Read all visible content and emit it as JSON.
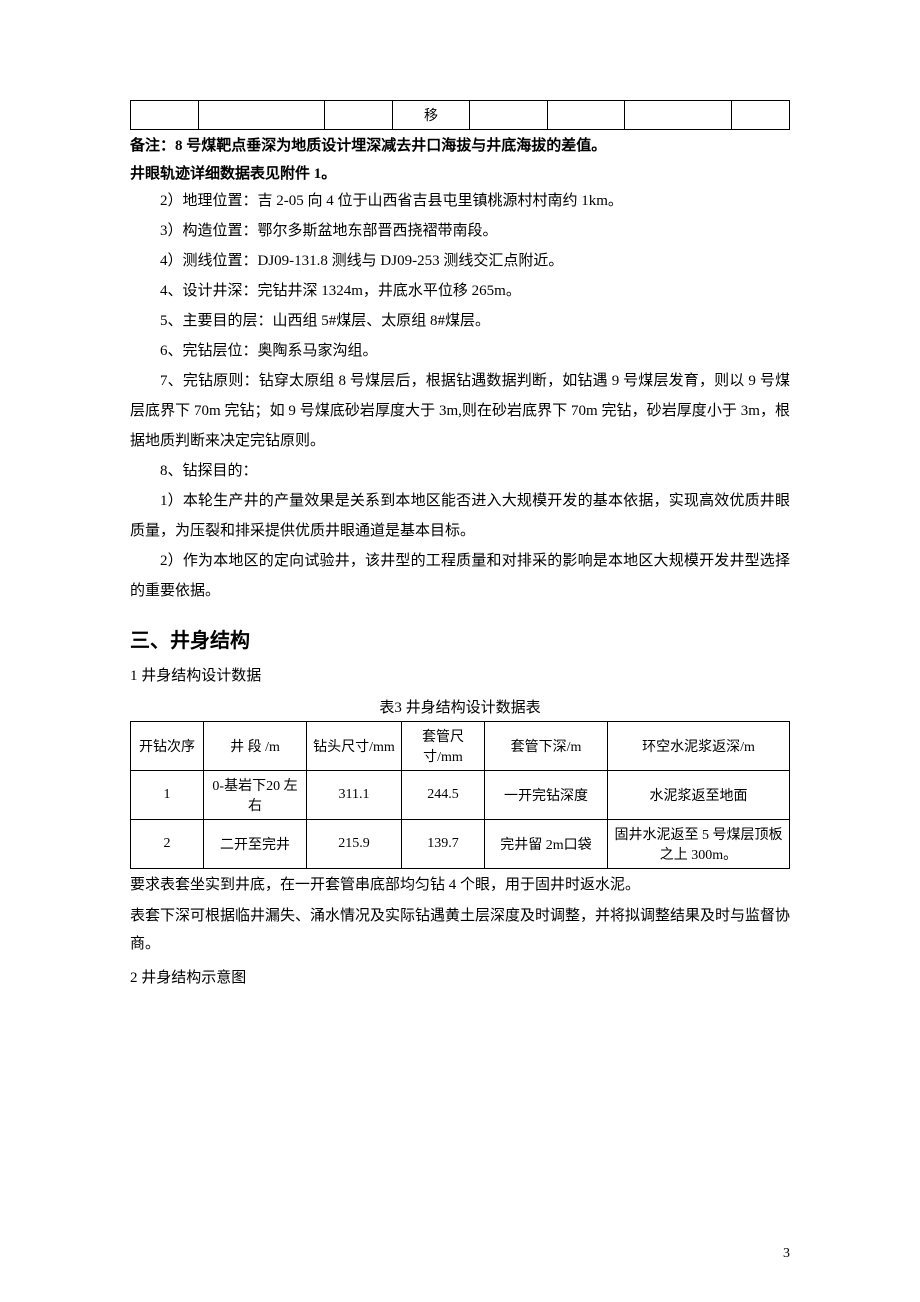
{
  "frag_table": {
    "cells": [
      "",
      "",
      "",
      "移",
      "",
      "",
      "",
      ""
    ]
  },
  "note1": "备注：8 号煤靶点垂深为地质设计埋深减去井口海拔与井底海拔的差值。",
  "note2": "井眼轨迹详细数据表见附件 1。",
  "items": {
    "i2": "2）地理位置：吉 2-05 向 4 位于山西省吉县屯里镇桃源村村南约 1km。",
    "i3": "3）构造位置：鄂尔多斯盆地东部晋西挠褶带南段。",
    "i4": "4）测线位置：DJ09-131.8 测线与 DJ09-253 测线交汇点附近。",
    "i5": "4、设计井深：完钻井深 1324m，井底水平位移 265m。",
    "i6": "5、主要目的层：山西组 5#煤层、太原组 8#煤层。",
    "i7": "6、完钻层位：奥陶系马家沟组。",
    "i8": "7、完钻原则：钻穿太原组 8 号煤层后，根据钻遇数据判断，如钻遇 9 号煤层发育，则以 9 号煤层底界下 70m 完钻；如 9 号煤底砂岩厚度大于 3m,则在砂岩底界下 70m 完钻，砂岩厚度小于 3m，根据地质判断来决定完钻原则。",
    "i9": "8、钻探目的：",
    "i10": "1）本轮生产井的产量效果是关系到本地区能否进入大规模开发的基本依据，实现高效优质井眼质量，为压裂和排采提供优质井眼通道是基本目标。",
    "i11": "2）作为本地区的定向试验井，该井型的工程质量和对排采的影响是本地区大规模开发井型选择的重要依据。"
  },
  "heading": "三、井身结构",
  "subhead1": "1 井身结构设计数据",
  "caption": "表3  井身结构设计数据表",
  "table": {
    "headers": [
      "开钻次序",
      "井 段 /m",
      "钻头尺寸/mm",
      "套管尺寸/mm",
      "套管下深/m",
      "环空水泥浆返深/m"
    ],
    "rows": [
      [
        "1",
        "0-基岩下20 左右",
        "311.1",
        "244.5",
        "一开完钻深度",
        "水泥浆返至地面"
      ],
      [
        "2",
        "二开至完井",
        "215.9",
        "139.7",
        "完井留 2m口袋",
        "固井水泥返至 5 号煤层顶板之上 300m。"
      ]
    ],
    "col_widths": [
      "60px",
      "90px",
      "82px",
      "70px",
      "110px",
      "auto"
    ]
  },
  "after1": "要求表套坐实到井底，在一开套管串底部均匀钻 4 个眼，用于固井时返水泥。",
  "after2": "表套下深可根据临井漏失、涌水情况及实际钻遇黄土层深度及时调整，并将拟调整结果及时与监督协商。",
  "subhead2": "2 井身结构示意图",
  "page_num": "3",
  "colors": {
    "text": "#000000",
    "bg": "#ffffff",
    "border": "#000000"
  }
}
